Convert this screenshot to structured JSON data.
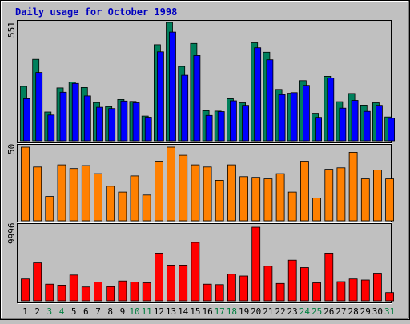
{
  "title": "Daily usage for October 1998",
  "colors": {
    "background": "#c0c0c0",
    "frame": "#000000",
    "title_text": "#0000c0",
    "hits": "#00805c",
    "files": "#0000ff",
    "kbytes": "#ff8000",
    "visits": "#ff0000",
    "weekday_label": "#000000",
    "weekend_label": "#008040"
  },
  "chart_data": [
    {
      "type": "bar",
      "panel": "top",
      "categories": [
        "1",
        "2",
        "3",
        "4",
        "5",
        "6",
        "7",
        "8",
        "9",
        "10",
        "11",
        "12",
        "13",
        "14",
        "15",
        "16",
        "17",
        "18",
        "19",
        "20",
        "21",
        "22",
        "23",
        "24",
        "25",
        "26",
        "27",
        "28",
        "29",
        "30",
        "31"
      ],
      "weekend_days": [
        "3",
        "4",
        "10",
        "11",
        "17",
        "18",
        "24",
        "25",
        "31"
      ],
      "ylabel": "551",
      "ylim": [
        0,
        551
      ],
      "series": [
        {
          "values": [
            253,
            379,
            134,
            246,
            274,
            248,
            178,
            159,
            192,
            183,
            115,
            447,
            551,
            346,
            453,
            140,
            138,
            196,
            177,
            456,
            412,
            239,
            221,
            280,
            128,
            300,
            182,
            220,
            166,
            177,
            111
          ]
        },
        {
          "values": [
            196,
            318,
            120,
            226,
            267,
            209,
            156,
            150,
            185,
            177,
            110,
            414,
            506,
            305,
            397,
            118,
            136,
            186,
            165,
            433,
            377,
            215,
            224,
            258,
            109,
            292,
            152,
            188,
            137,
            165,
            105
          ]
        }
      ]
    },
    {
      "type": "bar",
      "panel": "middle",
      "categories": [
        "1",
        "2",
        "3",
        "4",
        "5",
        "6",
        "7",
        "8",
        "9",
        "10",
        "11",
        "12",
        "13",
        "14",
        "15",
        "16",
        "17",
        "18",
        "19",
        "20",
        "21",
        "22",
        "23",
        "24",
        "25",
        "26",
        "27",
        "28",
        "29",
        "30",
        "31"
      ],
      "ylabel": "50",
      "ylim": [
        0,
        50
      ],
      "values": [
        50,
        36.5,
        16.5,
        38,
        35.5,
        37.5,
        32,
        23.5,
        19.5,
        30.5,
        17.5,
        40.5,
        50,
        44.5,
        38,
        36.5,
        27.5,
        38,
        30,
        29.5,
        28.5,
        32,
        19.5,
        40.5,
        15.5,
        35,
        36,
        46.5,
        28.5,
        34.5,
        28.5
      ]
    },
    {
      "type": "bar",
      "panel": "bottom",
      "categories": [
        "1",
        "2",
        "3",
        "4",
        "5",
        "6",
        "7",
        "8",
        "9",
        "10",
        "11",
        "12",
        "13",
        "14",
        "15",
        "16",
        "17",
        "18",
        "19",
        "20",
        "21",
        "22",
        "23",
        "24",
        "25",
        "26",
        "27",
        "28",
        "29",
        "30",
        "31"
      ],
      "ylabel": "9996",
      "ylim": [
        0,
        9996
      ],
      "values": [
        2970,
        5150,
        2260,
        2130,
        3500,
        1880,
        2560,
        1920,
        2700,
        2560,
        2440,
        6480,
        4850,
        4850,
        7930,
        2260,
        2190,
        3620,
        3370,
        9996,
        4710,
        2360,
        5520,
        4510,
        2440,
        6480,
        2610,
        2970,
        2820,
        3750,
        1120
      ]
    }
  ]
}
